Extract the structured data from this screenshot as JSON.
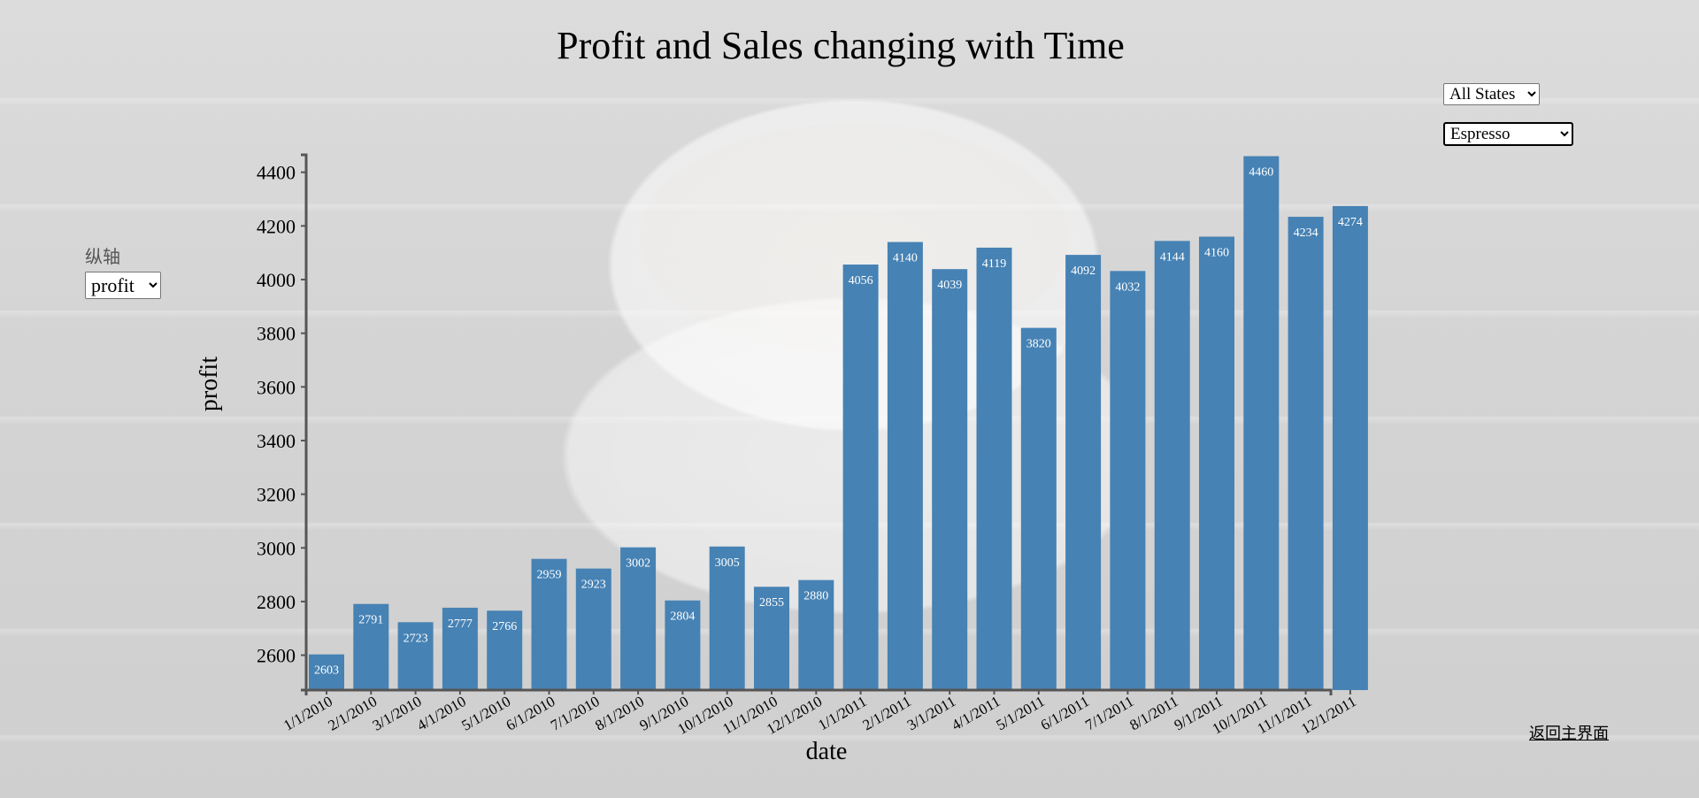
{
  "header": {
    "title": "Profit and Sales changing with Time"
  },
  "filters": {
    "state_selected": "All States",
    "product_selected": "Espresso"
  },
  "yaxis_control": {
    "label": "纵轴",
    "selected": "profit"
  },
  "nav": {
    "back_label": "返回主界面"
  },
  "colors": {
    "bar": "#4682b4",
    "bar_label": "#ffffff",
    "axis": "#555555"
  },
  "chart_data": {
    "type": "bar",
    "title": "Profit and Sales changing with Time",
    "xlabel": "date",
    "ylabel": "profit",
    "ylim": [
      2470,
      4465
    ],
    "yticks": [
      2600,
      2800,
      3000,
      3200,
      3400,
      3600,
      3800,
      4000,
      4200,
      4400
    ],
    "categories": [
      "1/1/2010",
      "2/1/2010",
      "3/1/2010",
      "4/1/2010",
      "5/1/2010",
      "6/1/2010",
      "7/1/2010",
      "8/1/2010",
      "9/1/2010",
      "10/1/2010",
      "11/1/2010",
      "12/1/2010",
      "1/1/2011",
      "2/1/2011",
      "3/1/2011",
      "4/1/2011",
      "5/1/2011",
      "6/1/2011",
      "7/1/2011",
      "8/1/2011",
      "9/1/2011",
      "10/1/2011",
      "11/1/2011",
      "12/1/2011"
    ],
    "values": [
      2603,
      2791,
      2723,
      2777,
      2766,
      2959,
      2923,
      3002,
      2804,
      3005,
      2855,
      2880,
      4056,
      4140,
      4039,
      4119,
      3820,
      4092,
      4032,
      4144,
      4160,
      4460,
      4234,
      4274
    ],
    "grid": false,
    "legend": "none"
  }
}
